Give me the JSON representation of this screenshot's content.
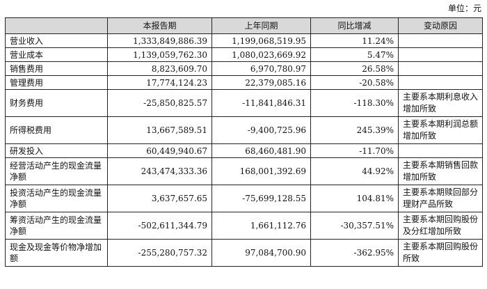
{
  "unit_label": "单位：元",
  "columns": [
    "",
    "本报告期",
    "上年同期",
    "同比增减",
    "变动原因"
  ],
  "rows": [
    {
      "item": "营业收入",
      "current": "1,333,849,886.39",
      "prior": "1,199,068,519.95",
      "change": "11.24%",
      "reason": ""
    },
    {
      "item": "营业成本",
      "current": "1,139,059,762.30",
      "prior": "1,080,023,669.92",
      "change": "5.47%",
      "reason": ""
    },
    {
      "item": "销售费用",
      "current": "8,823,609.70",
      "prior": "6,970,780.97",
      "change": "26.58%",
      "reason": ""
    },
    {
      "item": "管理费用",
      "current": "17,774,124.23",
      "prior": "22,379,085.16",
      "change": "-20.58%",
      "reason": ""
    },
    {
      "item": "财务费用",
      "current": "-25,850,825.57",
      "prior": "-11,841,846.31",
      "change": "-118.30%",
      "reason": "主要系本期利息收入增加所致"
    },
    {
      "item": "所得税费用",
      "current": "13,667,589.51",
      "prior": "-9,400,725.96",
      "change": "245.39%",
      "reason": "主要系本期利润总额增加所致"
    },
    {
      "item": "研发投入",
      "current": "60,449,940.67",
      "prior": "68,460,481.90",
      "change": "-11.70%",
      "reason": ""
    },
    {
      "item": "经营活动产生的现金流量净额",
      "current": "243,474,333.36",
      "prior": "168,001,392.69",
      "change": "44.92%",
      "reason": "主要系本期销售回款增加所致"
    },
    {
      "item": "投资活动产生的现金流量净额",
      "current": "3,637,657.65",
      "prior": "-75,699,128.55",
      "change": "104.81%",
      "reason": "主要系本期赎回部分理财产品所致"
    },
    {
      "item": "筹资活动产生的现金流量净额",
      "current": "-502,611,344.79",
      "prior": "1,661,112.76",
      "change": "-30,357.51%",
      "reason": "主要系本期回购股份及分红增加所致"
    },
    {
      "item": "现金及现金等价物净增加额",
      "current": "-255,280,757.32",
      "prior": "97,084,700.90",
      "change": "-362.95%",
      "reason": "主要系本期回购股份所致"
    }
  ]
}
